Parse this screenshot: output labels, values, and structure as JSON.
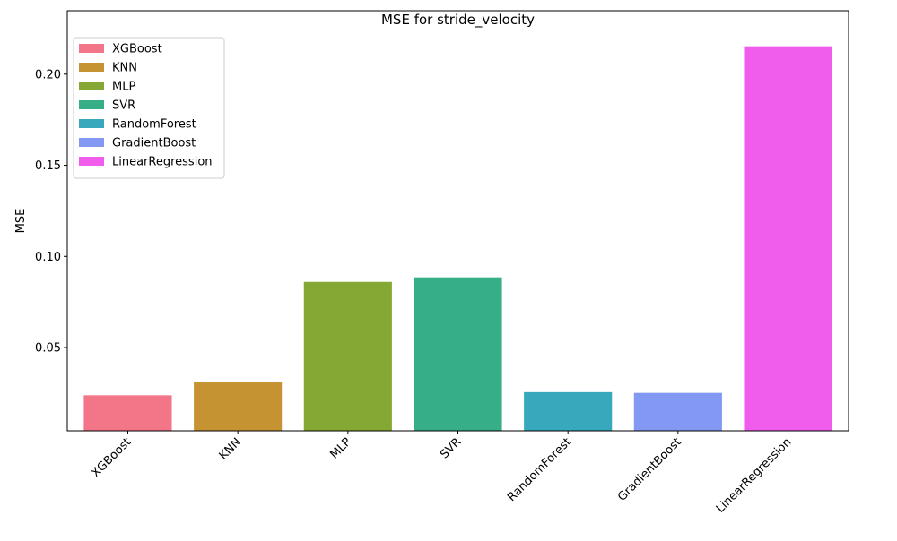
{
  "chart_data": {
    "type": "bar",
    "title": "MSE for stride_velocity",
    "xlabel": "",
    "ylabel": "MSE",
    "categories": [
      "XGBoost",
      "KNN",
      "MLP",
      "SVR",
      "RandomForest",
      "GradientBoost",
      "LinearRegression"
    ],
    "values": [
      0.0238,
      0.0313,
      0.086,
      0.0885,
      0.0255,
      0.0251,
      0.2153
    ],
    "colors": [
      "#f37688",
      "#c69333",
      "#84a833",
      "#36af88",
      "#38a9bd",
      "#8398f3",
      "#f05ded"
    ],
    "ylim": [
      0.0043,
      0.2348
    ],
    "yticks": [
      0.05,
      0.1,
      0.15,
      0.2
    ],
    "ytick_labels": [
      "0.05",
      "0.10",
      "0.15",
      "0.20"
    ],
    "grid": false,
    "legend": {
      "placement": "top-left",
      "entries": [
        "XGBoost",
        "KNN",
        "MLP",
        "SVR",
        "RandomForest",
        "GradientBoost",
        "LinearRegression"
      ]
    }
  }
}
